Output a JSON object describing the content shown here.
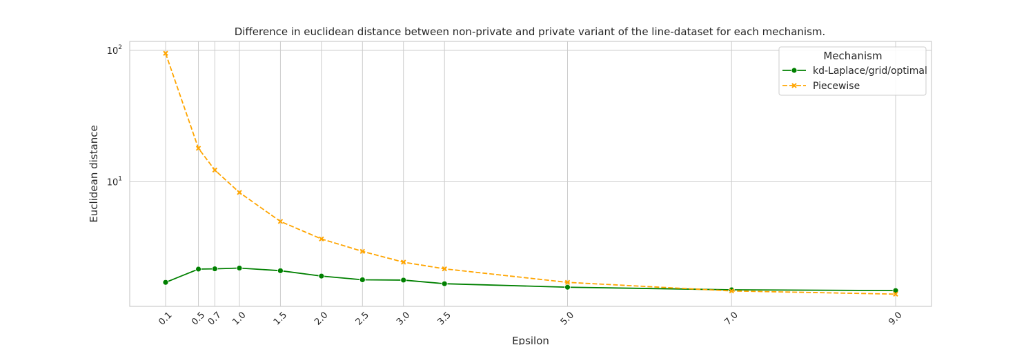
{
  "chart_data": {
    "type": "line",
    "title": "Difference in euclidean distance between non-private and private variant of the line-dataset for each mechanism.",
    "xlabel": "Epsilon",
    "ylabel": "Euclidean distance",
    "x": [
      0.1,
      0.5,
      0.7,
      1.0,
      1.5,
      2.0,
      2.5,
      3.0,
      3.5,
      5.0,
      7.0,
      9.0
    ],
    "x_tick_labels": [
      "0.1",
      "0.5",
      "0.7",
      "1.0",
      "1.5",
      "2.0",
      "2.5",
      "3.0",
      "3.5",
      "5.0",
      "7.0",
      "9.0"
    ],
    "y_scale": "log",
    "ylim": [
      1.13,
      117
    ],
    "y_ticks": [
      {
        "value": 10,
        "base": "10",
        "exp": "1"
      },
      {
        "value": 100,
        "base": "10",
        "exp": "2"
      }
    ],
    "grid": true,
    "legend": {
      "title": "Mechanism",
      "position": "top-right"
    },
    "series": [
      {
        "name": "kd-Laplace/grid/optimal",
        "color": "#008000",
        "marker": "circle",
        "dash": "solid",
        "values": [
          1.72,
          2.17,
          2.18,
          2.21,
          2.11,
          1.92,
          1.8,
          1.79,
          1.68,
          1.58,
          1.51,
          1.49
        ]
      },
      {
        "name": "Piecewise",
        "color": "#ffa500",
        "marker": "x",
        "dash": "dashed",
        "values": [
          95,
          18,
          12.3,
          8.3,
          5.0,
          3.68,
          2.96,
          2.45,
          2.18,
          1.72,
          1.48,
          1.4
        ]
      }
    ]
  }
}
